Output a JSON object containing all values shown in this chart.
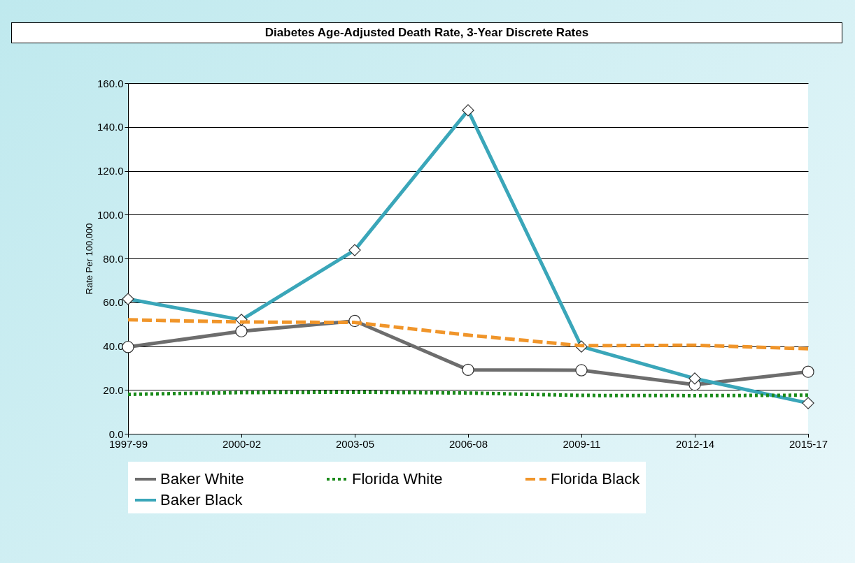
{
  "chart_data": {
    "type": "line",
    "title": "Diabetes Age-Adjusted Death Rate, 3-Year Discrete Rates",
    "ylabel": "Rate Per 100,000",
    "categories": [
      "1997-99",
      "2000-02",
      "2003-05",
      "2006-08",
      "2009-11",
      "2012-14",
      "2015-17"
    ],
    "ylim": [
      0,
      160
    ],
    "yticks": [
      {
        "value": 0,
        "label": "0.0"
      },
      {
        "value": 20,
        "label": "20.0"
      },
      {
        "value": 40,
        "label": "40.0"
      },
      {
        "value": 60,
        "label": "60.0"
      },
      {
        "value": 80,
        "label": "80.0"
      },
      {
        "value": 100,
        "label": "100.0"
      },
      {
        "value": 120,
        "label": "120.0"
      },
      {
        "value": 140,
        "label": "140.0"
      },
      {
        "value": 160,
        "label": "160.0"
      }
    ],
    "grid": "y",
    "legend": "bottom",
    "series": [
      {
        "name": "Baker White",
        "color": "#6d6d6d",
        "marker": "circle",
        "line_style": "solid",
        "values": [
          39.6,
          46.8,
          51.5,
          29.2,
          29.0,
          22.4,
          28.3
        ]
      },
      {
        "name": "Florida White",
        "color": "#1a8a1a",
        "marker": "none",
        "line_style": "dotted",
        "values": [
          18.0,
          18.8,
          19.0,
          18.6,
          17.5,
          17.4,
          17.6
        ]
      },
      {
        "name": "Florida Black",
        "color": "#f0952a",
        "marker": "none",
        "line_style": "dashed",
        "values": [
          52.0,
          51.0,
          50.8,
          45.0,
          40.2,
          40.4,
          38.8
        ]
      },
      {
        "name": "Baker Black",
        "color": "#3aa6b9",
        "marker": "diamond",
        "line_style": "solid",
        "values": [
          61.5,
          52.0,
          83.8,
          147.6,
          39.8,
          25.2,
          14.0
        ]
      }
    ]
  }
}
